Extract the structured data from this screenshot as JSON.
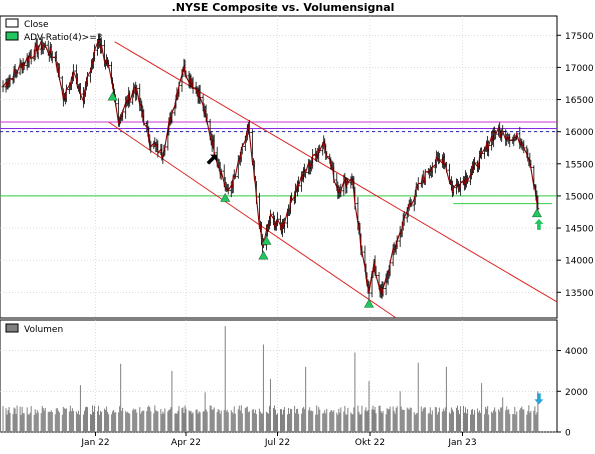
{
  "chart_data": [
    {
      "type": "line",
      "title": ".NYSE Composite vs. Volumensignal",
      "legend_position": "top-left",
      "legend": [
        {
          "label": "Close",
          "symbol": "hollow-box",
          "color": "#000000"
        },
        {
          "label": "ADV-Ratio(4)>=3",
          "symbol": "filled-box",
          "color": "#22c55e"
        }
      ],
      "ylim": [
        13100,
        17800
      ],
      "yticks": [
        13500,
        14000,
        14500,
        15000,
        15500,
        16000,
        16500,
        17000,
        17500
      ],
      "xticks": [
        {
          "label": "Jan 22",
          "date": "2022-01-01"
        },
        {
          "label": "Apr 22",
          "date": "2022-04-01"
        },
        {
          "label": "Jul 22",
          "date": "2022-07-01"
        },
        {
          "label": "Okt 22",
          "date": "2022-10-01"
        },
        {
          "label": "Jan 23",
          "date": "2023-01-01"
        }
      ],
      "xlim": [
        "2021-09-28",
        "2023-04-05"
      ],
      "grid": true,
      "series": [
        {
          "name": "Close",
          "kind": "ohlc-bars",
          "color": "#8b0000",
          "points": [
            [
              "2021-10-01",
              16700
            ],
            [
              "2021-10-15",
              16950
            ],
            [
              "2021-11-01",
              17250
            ],
            [
              "2021-11-10",
              17350
            ],
            [
              "2021-11-22",
              17150
            ],
            [
              "2021-12-01",
              16500
            ],
            [
              "2021-12-10",
              16900
            ],
            [
              "2021-12-20",
              16550
            ],
            [
              "2022-01-04",
              17450
            ],
            [
              "2022-01-14",
              16950
            ],
            [
              "2022-01-24",
              16200
            ],
            [
              "2022-02-09",
              16700
            ],
            [
              "2022-02-24",
              15850
            ],
            [
              "2022-03-08",
              15650
            ],
            [
              "2022-03-29",
              17000
            ],
            [
              "2022-04-14",
              16600
            ],
            [
              "2022-04-26",
              15900
            ],
            [
              "2022-05-12",
              15050
            ],
            [
              "2022-05-20",
              15300
            ],
            [
              "2022-06-02",
              16050
            ],
            [
              "2022-06-16",
              14200
            ],
            [
              "2022-06-24",
              14650
            ],
            [
              "2022-07-05",
              14500
            ],
            [
              "2022-07-20",
              15150
            ],
            [
              "2022-08-16",
              15850
            ],
            [
              "2022-08-30",
              15100
            ],
            [
              "2022-09-13",
              15300
            ],
            [
              "2022-09-23",
              14050
            ],
            [
              "2022-09-30",
              13550
            ],
            [
              "2022-10-05",
              13900
            ],
            [
              "2022-10-13",
              13450
            ],
            [
              "2022-10-24",
              14100
            ],
            [
              "2022-11-10",
              14900
            ],
            [
              "2022-11-30",
              15450
            ],
            [
              "2022-12-13",
              15600
            ],
            [
              "2022-12-22",
              15100
            ],
            [
              "2023-01-06",
              15300
            ],
            [
              "2023-01-20",
              15600
            ],
            [
              "2023-02-02",
              16000
            ],
            [
              "2023-02-15",
              15950
            ],
            [
              "2023-03-02",
              15850
            ],
            [
              "2023-03-09",
              15550
            ],
            [
              "2023-03-17",
              14800
            ]
          ]
        }
      ],
      "signals": {
        "color": "#22c55e",
        "dates": [
          "2022-01-18",
          "2022-05-10",
          "2022-06-17",
          "2022-06-20",
          "2022-09-30",
          "2023-03-16"
        ]
      },
      "reference_lines": [
        {
          "kind": "horizontal",
          "y": 16000,
          "style": "dashed",
          "color": "#1f1fa8"
        },
        {
          "kind": "horizontal",
          "y": 16050,
          "color": "#8a2be2"
        },
        {
          "kind": "horizontal",
          "y": 16150,
          "color": "#cc33cc"
        },
        {
          "kind": "horizontal",
          "y": 15000,
          "color": "#2ecc40"
        },
        {
          "kind": "horizontal-segment",
          "y": 14880,
          "from": "2022-12-23",
          "to": "2023-03-31",
          "color": "#2ecc40"
        }
      ],
      "channel_lines": [
        {
          "from": [
            "2022-01-20",
            17400
          ],
          "to": [
            "2023-04-05",
            13350
          ],
          "color": "#dc2626"
        },
        {
          "from": [
            "2022-01-14",
            16150
          ],
          "to": [
            "2022-10-27",
            13100
          ],
          "color": "#dc2626"
        }
      ],
      "annotations": [
        {
          "kind": "arrow",
          "color": "#000000",
          "direction": "up-right",
          "date": "2022-04-25",
          "y": 15550
        },
        {
          "kind": "arrow",
          "color": "#22c55e",
          "direction": "up",
          "date": "2023-03-18",
          "y": 14550
        }
      ]
    },
    {
      "type": "bar",
      "legend": [
        {
          "label": "Volumen",
          "symbol": "filled-box",
          "color": "#808080"
        }
      ],
      "legend_position": "top-left",
      "ylim": [
        0,
        5500
      ],
      "yticks": [
        0,
        2000,
        4000
      ],
      "series": [
        {
          "name": "Volumen",
          "baseline": 1050,
          "spikes": [
            [
              "2021-12-17",
              2300
            ],
            [
              "2022-01-26",
              3350
            ],
            [
              "2022-03-18",
              3000
            ],
            [
              "2022-04-20",
              1950
            ],
            [
              "2022-05-10",
              5200
            ],
            [
              "2022-06-17",
              4300
            ],
            [
              "2022-06-24",
              2600
            ],
            [
              "2022-07-29",
              3200
            ],
            [
              "2022-09-16",
              3900
            ],
            [
              "2022-09-30",
              2500
            ],
            [
              "2022-10-31",
              2000
            ],
            [
              "2022-11-18",
              3400
            ],
            [
              "2022-12-16",
              3200
            ],
            [
              "2023-01-20",
              2400
            ],
            [
              "2023-02-10",
              1700
            ],
            [
              "2023-03-17",
              2000
            ]
          ]
        }
      ],
      "annotations": [
        {
          "kind": "arrow",
          "color": "#29a3d6",
          "direction": "down",
          "date": "2023-03-18",
          "y": 1650
        }
      ]
    }
  ]
}
